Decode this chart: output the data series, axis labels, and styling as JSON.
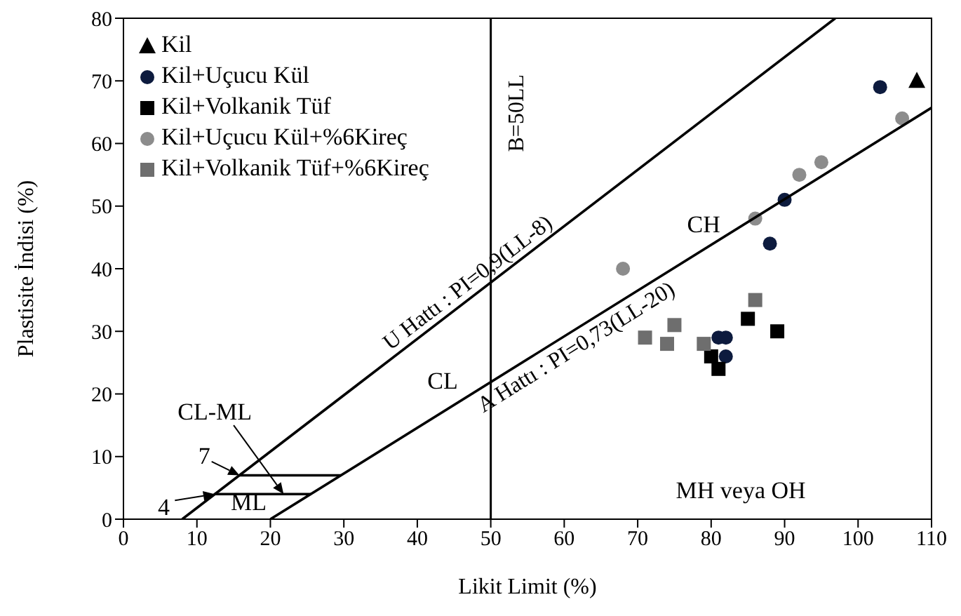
{
  "chart_data": {
    "type": "scatter",
    "xlabel": "Likit Limit (%)",
    "ylabel": "Plastisite İndisi (%)",
    "xlim": [
      0,
      110
    ],
    "xticks": [
      0,
      10,
      20,
      30,
      40,
      50,
      60,
      70,
      80,
      90,
      100,
      110
    ],
    "ylim": [
      0,
      80
    ],
    "yticks": [
      0,
      10,
      20,
      30,
      40,
      50,
      60,
      70,
      80
    ],
    "legend": "top left",
    "series": [
      {
        "name": "Kil",
        "color": "#000000",
        "marker": "triangle",
        "x": [
          108
        ],
        "values": [
          70
        ]
      },
      {
        "name": "Kil+Uçucu Kül",
        "color": "#0d1b3e",
        "marker": "circle",
        "x": [
          103,
          90,
          88,
          81,
          82,
          82
        ],
        "values": [
          69,
          51,
          44,
          29,
          29,
          26
        ]
      },
      {
        "name": "Kil+Volkanik Tüf",
        "color": "#000000",
        "marker": "square",
        "x": [
          85,
          89,
          81,
          80
        ],
        "values": [
          32,
          30,
          24,
          26
        ]
      },
      {
        "name": "Kil+Uçucu Kül+%6Kireç",
        "color": "#8c8c8c",
        "marker": "circle",
        "x": [
          106,
          95,
          92,
          86,
          68
        ],
        "values": [
          64,
          57,
          55,
          48,
          40
        ]
      },
      {
        "name": "Kil+Volkanik Tüf+%6Kireç",
        "color": "#6e6e6e",
        "marker": "square",
        "x": [
          71,
          74,
          75,
          79,
          86
        ],
        "values": [
          29,
          28,
          31,
          28,
          35
        ]
      },
      {
        "name": "U Hattı : PI=0,9(LL-8)",
        "type": "line",
        "color": "#000000",
        "x": [
          8,
          96.9
        ],
        "values": [
          0,
          80
        ]
      },
      {
        "name": "A Hattı : PI=0,73(LL-20)",
        "type": "line",
        "color": "#000000",
        "x": [
          20,
          110
        ],
        "values": [
          0,
          65.7
        ]
      },
      {
        "type": "line",
        "color": "#000000",
        "x": [
          15.8,
          29.6
        ],
        "values": [
          7,
          7
        ]
      },
      {
        "type": "line",
        "color": "#000000",
        "x": [
          12.4,
          25.5
        ],
        "values": [
          4,
          4
        ]
      }
    ],
    "ref_lines": [
      {
        "axis": "x",
        "value": 50,
        "label": "B=50LL",
        "color": "#000000"
      }
    ],
    "annotations": [
      "CH",
      "CL",
      {
        "text": "CL-ML",
        "x": 21.8,
        "y": 4
      },
      "ML",
      {
        "text": "7",
        "x": 15.8,
        "y": 7
      },
      {
        "text": "4",
        "x": 12.4,
        "y": 4
      },
      "MH veya OH"
    ]
  }
}
